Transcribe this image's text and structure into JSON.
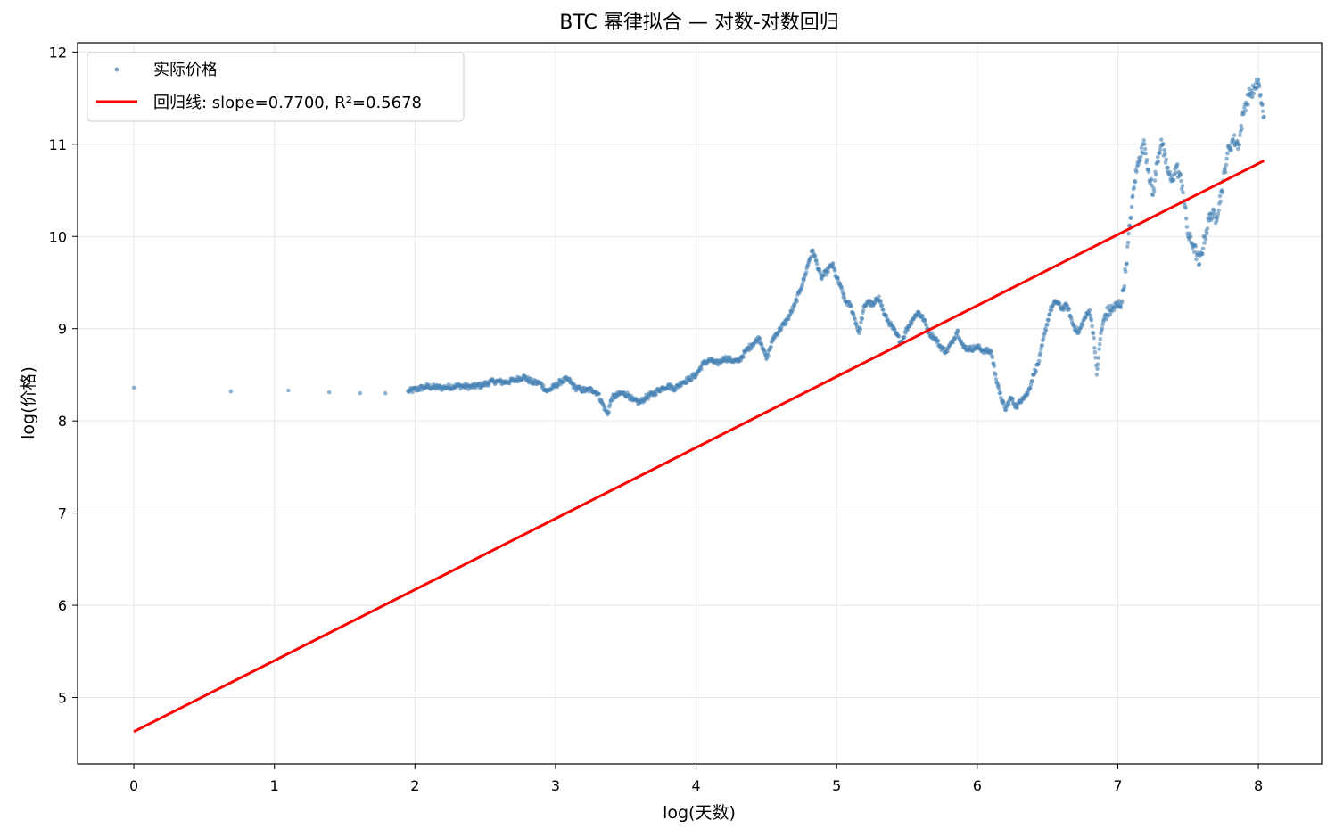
{
  "chart_data": {
    "type": "scatter",
    "title": "BTC 幂律拟合 — 对数-对数回归",
    "xlabel": "log(天数)",
    "ylabel": "log(价格)",
    "xlim": [
      -0.4,
      8.45
    ],
    "ylim": [
      4.28,
      12.1
    ],
    "xticks": [
      0,
      1,
      2,
      3,
      4,
      5,
      6,
      7,
      8
    ],
    "yticks": [
      5,
      6,
      7,
      8,
      9,
      10,
      11,
      12
    ],
    "grid": true,
    "legend_position": "top-left",
    "colors": {
      "points": "#4682b4",
      "fit_line": "#ff0000",
      "grid": "#e6e6e6"
    },
    "series": [
      {
        "name": "实际价格",
        "kind": "scatter",
        "anchors": [
          [
            0,
            8.36
          ],
          [
            0.69,
            8.32
          ],
          [
            1.1,
            8.33
          ],
          [
            1.39,
            8.31
          ],
          [
            1.61,
            8.3
          ],
          [
            1.79,
            8.3
          ],
          [
            1.95,
            8.32
          ],
          [
            2.08,
            8.37
          ],
          [
            2.2,
            8.36
          ],
          [
            2.3,
            8.38
          ],
          [
            2.4,
            8.37
          ],
          [
            2.48,
            8.39
          ],
          [
            2.56,
            8.43
          ],
          [
            2.64,
            8.42
          ],
          [
            2.71,
            8.44
          ],
          [
            2.77,
            8.48
          ],
          [
            2.83,
            8.42
          ],
          [
            2.89,
            8.41
          ],
          [
            2.94,
            8.32
          ],
          [
            3.0,
            8.38
          ],
          [
            3.04,
            8.43
          ],
          [
            3.09,
            8.45
          ],
          [
            3.14,
            8.36
          ],
          [
            3.18,
            8.34
          ],
          [
            3.22,
            8.33
          ],
          [
            3.26,
            8.34
          ],
          [
            3.3,
            8.3
          ],
          [
            3.37,
            8.07
          ],
          [
            3.4,
            8.25
          ],
          [
            3.47,
            8.3
          ],
          [
            3.52,
            8.28
          ],
          [
            3.55,
            8.22
          ],
          [
            3.6,
            8.2
          ],
          [
            3.64,
            8.25
          ],
          [
            3.7,
            8.3
          ],
          [
            3.75,
            8.35
          ],
          [
            3.8,
            8.38
          ],
          [
            3.85,
            8.35
          ],
          [
            3.9,
            8.42
          ],
          [
            3.95,
            8.45
          ],
          [
            4.0,
            8.5
          ],
          [
            4.05,
            8.62
          ],
          [
            4.1,
            8.66
          ],
          [
            4.15,
            8.62
          ],
          [
            4.2,
            8.68
          ],
          [
            4.25,
            8.66
          ],
          [
            4.3,
            8.64
          ],
          [
            4.35,
            8.75
          ],
          [
            4.4,
            8.83
          ],
          [
            4.45,
            8.9
          ],
          [
            4.48,
            8.78
          ],
          [
            4.5,
            8.67
          ],
          [
            4.55,
            8.9
          ],
          [
            4.6,
            9.0
          ],
          [
            4.65,
            9.1
          ],
          [
            4.7,
            9.25
          ],
          [
            4.74,
            9.42
          ],
          [
            4.77,
            9.55
          ],
          [
            4.8,
            9.72
          ],
          [
            4.83,
            9.85
          ],
          [
            4.86,
            9.7
          ],
          [
            4.89,
            9.55
          ],
          [
            4.93,
            9.62
          ],
          [
            4.97,
            9.7
          ],
          [
            5.0,
            9.55
          ],
          [
            5.03,
            9.45
          ],
          [
            5.06,
            9.3
          ],
          [
            5.1,
            9.25
          ],
          [
            5.13,
            9.1
          ],
          [
            5.16,
            8.95
          ],
          [
            5.19,
            9.2
          ],
          [
            5.22,
            9.3
          ],
          [
            5.26,
            9.25
          ],
          [
            5.3,
            9.35
          ],
          [
            5.34,
            9.15
          ],
          [
            5.38,
            9.05
          ],
          [
            5.42,
            8.95
          ],
          [
            5.46,
            8.85
          ],
          [
            5.5,
            9.0
          ],
          [
            5.54,
            9.1
          ],
          [
            5.58,
            9.18
          ],
          [
            5.62,
            9.1
          ],
          [
            5.66,
            8.95
          ],
          [
            5.7,
            8.9
          ],
          [
            5.74,
            8.8
          ],
          [
            5.78,
            8.75
          ],
          [
            5.82,
            8.85
          ],
          [
            5.86,
            8.98
          ],
          [
            5.9,
            8.8
          ],
          [
            5.95,
            8.78
          ],
          [
            6.0,
            8.8
          ],
          [
            6.05,
            8.76
          ],
          [
            6.1,
            8.75
          ],
          [
            6.13,
            8.5
          ],
          [
            6.16,
            8.3
          ],
          [
            6.2,
            8.12
          ],
          [
            6.24,
            8.25
          ],
          [
            6.28,
            8.15
          ],
          [
            6.32,
            8.25
          ],
          [
            6.36,
            8.3
          ],
          [
            6.4,
            8.5
          ],
          [
            6.44,
            8.65
          ],
          [
            6.48,
            8.95
          ],
          [
            6.52,
            9.2
          ],
          [
            6.56,
            9.3
          ],
          [
            6.6,
            9.22
          ],
          [
            6.64,
            9.25
          ],
          [
            6.68,
            9.05
          ],
          [
            6.72,
            8.95
          ],
          [
            6.76,
            9.1
          ],
          [
            6.8,
            9.2
          ],
          [
            6.83,
            8.9
          ],
          [
            6.85,
            8.5
          ],
          [
            6.88,
            8.95
          ],
          [
            6.91,
            9.15
          ],
          [
            6.95,
            9.2
          ],
          [
            7.0,
            9.25
          ],
          [
            7.03,
            9.3
          ],
          [
            7.06,
            9.7
          ],
          [
            7.09,
            10.2
          ],
          [
            7.12,
            10.6
          ],
          [
            7.15,
            10.85
          ],
          [
            7.19,
            11.0
          ],
          [
            7.22,
            10.7
          ],
          [
            7.25,
            10.45
          ],
          [
            7.28,
            10.8
          ],
          [
            7.31,
            11.05
          ],
          [
            7.34,
            10.8
          ],
          [
            7.38,
            10.6
          ],
          [
            7.42,
            10.75
          ],
          [
            7.46,
            10.55
          ],
          [
            7.5,
            10.0
          ],
          [
            7.54,
            9.9
          ],
          [
            7.58,
            9.7
          ],
          [
            7.62,
            10.0
          ],
          [
            7.66,
            10.25
          ],
          [
            7.7,
            10.2
          ],
          [
            7.74,
            10.5
          ],
          [
            7.78,
            10.9
          ],
          [
            7.82,
            11.05
          ],
          [
            7.86,
            11.0
          ],
          [
            7.9,
            11.4
          ],
          [
            7.94,
            11.55
          ],
          [
            7.98,
            11.6
          ],
          [
            8.0,
            11.7
          ],
          [
            8.02,
            11.45
          ],
          [
            8.04,
            11.3
          ]
        ]
      },
      {
        "name": "回归线: slope=0.7700, R²=0.5678",
        "kind": "line",
        "slope": 0.77,
        "intercept": 4.63,
        "x_range": [
          0,
          8.04
        ]
      }
    ]
  }
}
